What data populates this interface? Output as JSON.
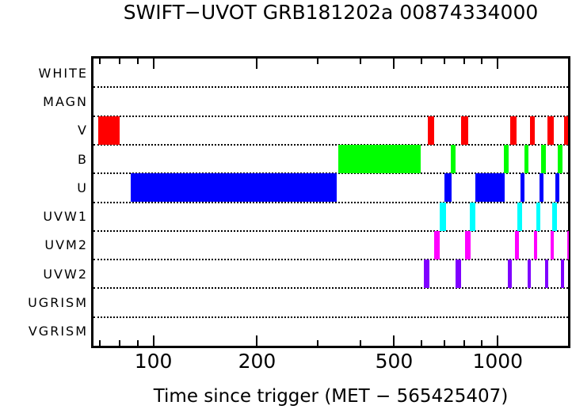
{
  "chart_data": {
    "type": "bar",
    "variant": "exposure-timeline",
    "title": "SWIFT−UVOT GRB181202a 00874334000",
    "xlabel": "Time since trigger (MET − 565425407)",
    "x_scale": "log",
    "xlim": [
      67,
      1600
    ],
    "x_major_ticks": [
      100,
      200,
      500,
      1000
    ],
    "x_major_tick_labels": [
      "100",
      "200",
      "500",
      "1000"
    ],
    "x_minor_ticks": [
      70,
      80,
      90,
      300,
      400,
      600,
      700,
      800,
      900
    ],
    "grid": "dotted-horizontal-row-separators",
    "legend_position": "none",
    "rows": [
      {
        "label": "WHITE",
        "color": "#000000",
        "intervals": []
      },
      {
        "label": "MAGN",
        "color": "#000000",
        "intervals": []
      },
      {
        "label": "V",
        "color": "#ff0000",
        "intervals": [
          [
            69,
            80
          ],
          [
            628,
            655
          ],
          [
            784,
            822
          ],
          [
            1088,
            1135
          ],
          [
            1242,
            1282
          ],
          [
            1395,
            1455
          ],
          [
            1558,
            1600
          ]
        ]
      },
      {
        "label": "B",
        "color": "#00ff00",
        "intervals": [
          [
            344,
            596
          ],
          [
            732,
            756
          ],
          [
            1043,
            1077
          ],
          [
            1197,
            1229
          ],
          [
            1337,
            1380
          ],
          [
            1494,
            1542
          ]
        ]
      },
      {
        "label": "U",
        "color": "#0000ff",
        "intervals": [
          [
            86,
            340
          ],
          [
            702,
            736
          ],
          [
            863,
            1049
          ],
          [
            1166,
            1197
          ],
          [
            1323,
            1358
          ],
          [
            1470,
            1510
          ]
        ]
      },
      {
        "label": "UVW1",
        "color": "#00ffff",
        "intervals": [
          [
            680,
            706
          ],
          [
            831,
            863
          ],
          [
            1141,
            1178
          ],
          [
            1295,
            1330
          ],
          [
            1440,
            1486
          ]
        ]
      },
      {
        "label": "UVM2",
        "color": "#ff00ff",
        "intervals": [
          [
            652,
            680
          ],
          [
            805,
            835
          ],
          [
            1123,
            1153
          ],
          [
            1275,
            1302
          ],
          [
            1425,
            1455
          ],
          [
            1592,
            1600
          ]
        ]
      },
      {
        "label": "UVW2",
        "color": "#7f00ff",
        "intervals": [
          [
            609,
            632
          ],
          [
            756,
            784
          ],
          [
            1071,
            1100
          ],
          [
            1222,
            1248
          ],
          [
            1373,
            1402
          ],
          [
            1526,
            1558
          ]
        ]
      },
      {
        "label": "UGRISM",
        "color": "#000000",
        "intervals": []
      },
      {
        "label": "VGRISM",
        "color": "#000000",
        "intervals": []
      }
    ]
  }
}
